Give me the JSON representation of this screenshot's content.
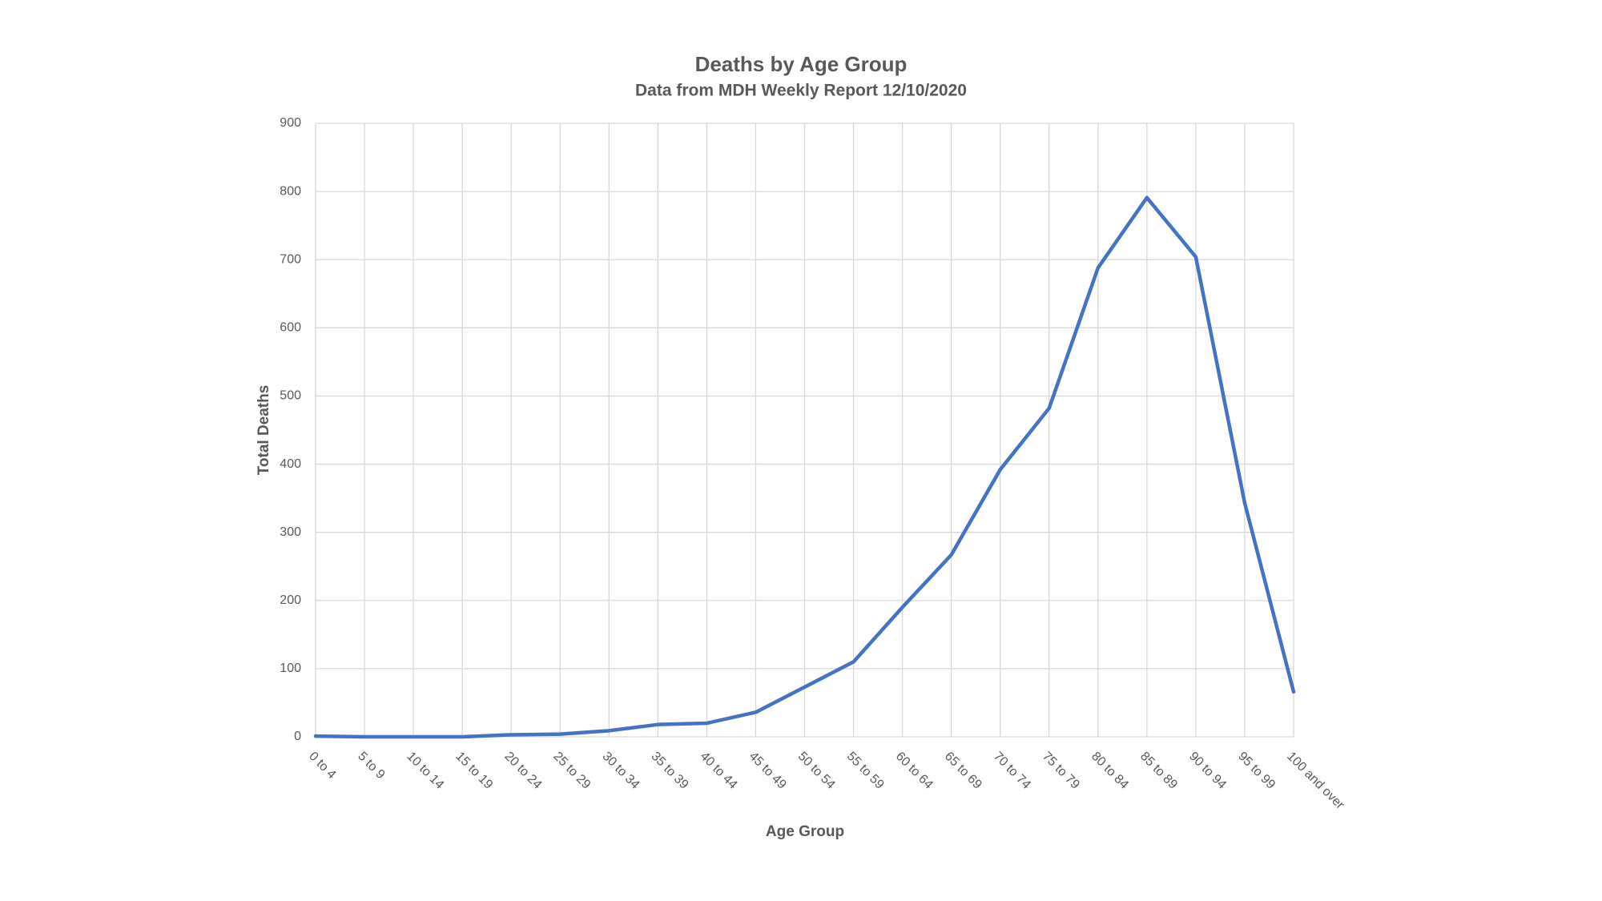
{
  "chart_data": {
    "type": "line",
    "title": "Deaths by Age Group",
    "subtitle": "Data from MDH Weekly Report 12/10/2020",
    "x_label": "Age Group",
    "y_label": "Total Deaths",
    "categories": [
      "0 to 4",
      "5 to 9",
      "10 to 14",
      "15 to 19",
      "20 to 24",
      "25 to 29",
      "30 to 34",
      "35 to 39",
      "40 to 44",
      "45 to 49",
      "50 to 54",
      "55 to 59",
      "60 to 64",
      "65 to 69",
      "70 to 74",
      "75 to 79",
      "80 to 84",
      "85 to 89",
      "90 to 94",
      "95 to 99",
      "100 and over"
    ],
    "series": [
      {
        "name": "Total Deaths",
        "color": "#4472c4",
        "values": [
          1,
          0,
          0,
          0,
          3,
          4,
          9,
          18,
          20,
          36,
          73,
          110,
          190,
          267,
          392,
          482,
          688,
          791,
          704,
          343,
          66
        ]
      }
    ],
    "ylim": [
      0,
      900
    ],
    "yticks": [
      0,
      100,
      200,
      300,
      400,
      500,
      600,
      700,
      800,
      900
    ],
    "grid": true
  }
}
